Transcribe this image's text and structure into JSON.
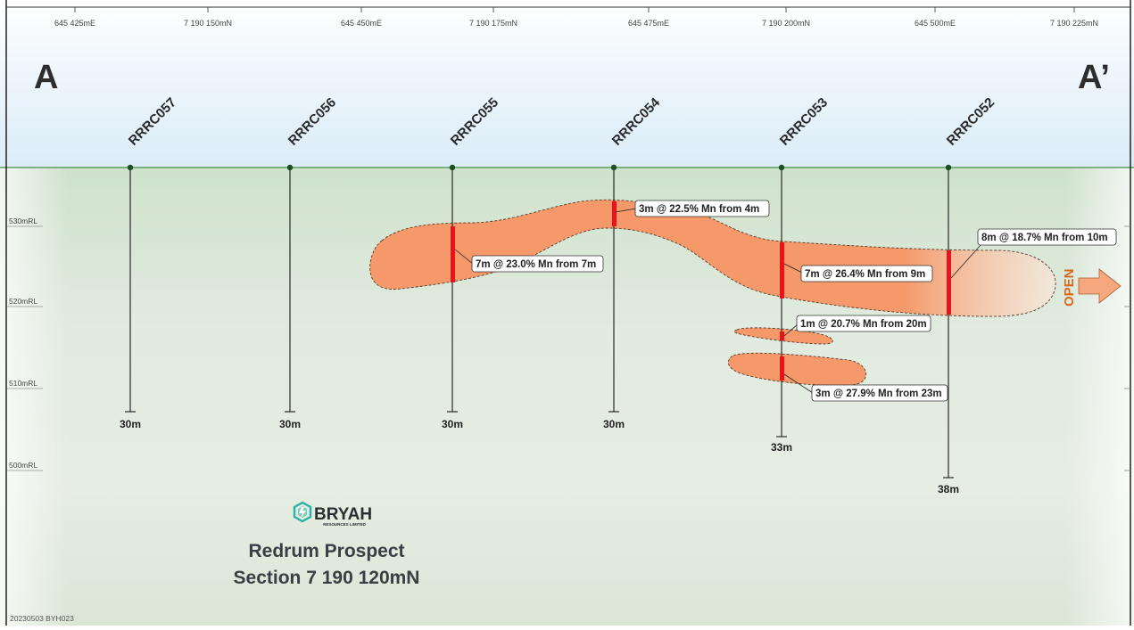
{
  "section": {
    "corner_left": "A",
    "corner_right": "A’",
    "coordinates": [
      "645 425mE",
      "7 190 150mN",
      "645 450mE",
      "7 190 175mN",
      "645 475mE",
      "7 190 200mN",
      "645 500mE",
      "7 190 225mN"
    ],
    "rl_labels": [
      "530mRL",
      "520mRL",
      "510mRL",
      "500mRL"
    ],
    "drillholes": [
      {
        "id": "RRRC057",
        "depth": "30m"
      },
      {
        "id": "RRRC056",
        "depth": "30m"
      },
      {
        "id": "RRRC055",
        "depth": "30m"
      },
      {
        "id": "RRRC054",
        "depth": "30m"
      },
      {
        "id": "RRRC053",
        "depth": "33m"
      },
      {
        "id": "RRRC052",
        "depth": "38m"
      }
    ],
    "intercepts": [
      "3m @ 22.5% Mn from 4m",
      "7m @ 23.0% Mn from 7m",
      "7m @ 26.4% Mn from 9m",
      "8m @ 18.7% Mn from 10m",
      "1m @ 20.7% Mn from 20m",
      "3m @ 27.9% Mn from 23m"
    ],
    "open_label": "OPEN"
  },
  "branding": {
    "company": "BRYAH",
    "company_sub": "RESOURCES LIMITED",
    "title_line1": "Redrum Prospect",
    "title_line2": "Section 7 190 120mN",
    "footnote": "20230503 BYH023"
  },
  "colors": {
    "ore_body": "#f5996a",
    "intercept": "#e8141c",
    "ground": "#dde9dc",
    "sky": "#e6f2fb",
    "logo_teal": "#2bb3a3",
    "open_orange": "#d9681f"
  }
}
